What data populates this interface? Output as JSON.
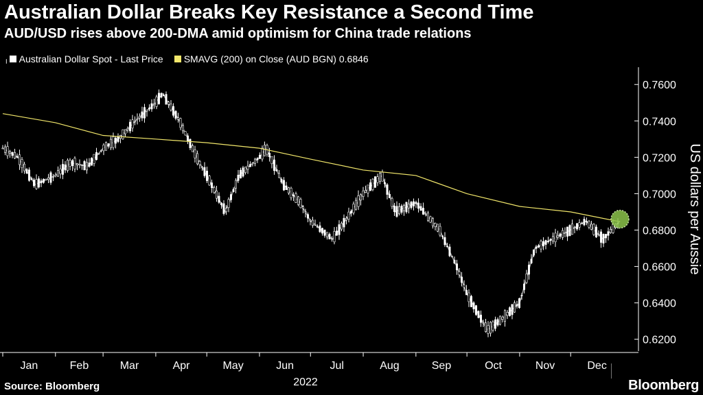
{
  "header": {
    "title": "Australian Dollar Breaks Key Resistance a Second Time",
    "subtitle": "AUD/USD rises above 200-DMA amid optimism for China trade relations"
  },
  "legend": {
    "items": [
      {
        "label": "Australian Dollar Spot - Last Price",
        "color": "#ffffff",
        "icon": "candlestick-icon"
      },
      {
        "label": "SMAVG (200)  on Close (AUD BGN) 0.6846",
        "color": "#f2e76b",
        "icon": "square-swatch-icon"
      }
    ]
  },
  "footer": {
    "source": "Source: Bloomberg",
    "brand": "Bloomberg"
  },
  "chart_data": {
    "type": "line",
    "title": "Australian Dollar Breaks Key Resistance a Second Time",
    "subtitle": "AUD/USD rises above 200-DMA amid optimism for China trade relations",
    "xlabel": "2022",
    "ylabel": "US dollars per Aussie",
    "categories": [
      "Jan",
      "Feb",
      "Mar",
      "Apr",
      "May",
      "Jun",
      "Jul",
      "Aug",
      "Sep",
      "Oct",
      "Nov",
      "Dec"
    ],
    "yticks": [
      "0.6200",
      "0.6400",
      "0.6600",
      "0.6800",
      "0.7000",
      "0.7200",
      "0.7400",
      "0.7600"
    ],
    "ylim": [
      0.615,
      0.768
    ],
    "grid": false,
    "legend_position": "top-left",
    "series": [
      {
        "name": "Australian Dollar Spot - Last Price",
        "color": "#ffffff",
        "x": [
          "Jan 1",
          "Jan 10",
          "Jan 20",
          "Feb 1",
          "Feb 10",
          "Feb 20",
          "Mar 1",
          "Mar 10",
          "Mar 20",
          "Apr 1",
          "Apr 5",
          "Apr 15",
          "Apr 25",
          "May 1",
          "May 12",
          "May 20",
          "Jun 1",
          "Jun 5",
          "Jun 15",
          "Jun 25",
          "Jul 1",
          "Jul 14",
          "Jul 25",
          "Aug 1",
          "Aug 12",
          "Aug 20",
          "Sep 1",
          "Sep 15",
          "Sep 25",
          "Oct 1",
          "Oct 13",
          "Oct 20",
          "Nov 1",
          "Nov 10",
          "Nov 20",
          "Dec 1",
          "Dec 10",
          "Dec 20",
          "Dec 30"
        ],
        "values": [
          0.725,
          0.72,
          0.705,
          0.71,
          0.717,
          0.715,
          0.725,
          0.73,
          0.74,
          0.75,
          0.755,
          0.74,
          0.72,
          0.71,
          0.69,
          0.71,
          0.72,
          0.725,
          0.705,
          0.695,
          0.685,
          0.675,
          0.69,
          0.7,
          0.71,
          0.69,
          0.695,
          0.68,
          0.66,
          0.645,
          0.625,
          0.63,
          0.64,
          0.67,
          0.675,
          0.68,
          0.685,
          0.675,
          0.685
        ]
      },
      {
        "name": "SMAVG (200)  on Close (AUD BGN) 0.6846",
        "color": "#f2e76b",
        "x": [
          "Jan 1",
          "Feb 1",
          "Mar 1",
          "Apr 1",
          "May 1",
          "Jun 1",
          "Jul 1",
          "Aug 1",
          "Sep 1",
          "Oct 1",
          "Nov 1",
          "Dec 1",
          "Dec 30"
        ],
        "values": [
          0.744,
          0.739,
          0.732,
          0.73,
          0.728,
          0.725,
          0.719,
          0.713,
          0.71,
          0.7,
          0.693,
          0.69,
          0.6846
        ]
      }
    ],
    "annotations": [
      {
        "type": "highlight-circle",
        "x": "Dec 30",
        "y": 0.686,
        "color": "#8bc34a"
      }
    ]
  }
}
